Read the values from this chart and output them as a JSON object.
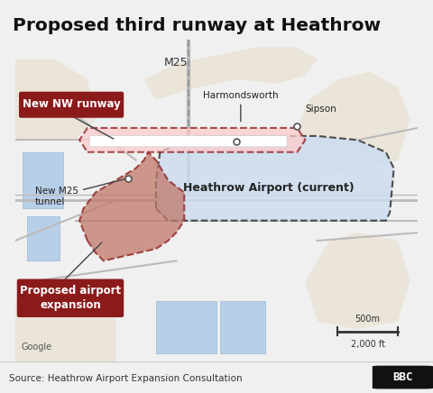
{
  "title": "Proposed third runway at Heathrow",
  "source_text": "Source: Heathrow Airport Expansion Consultation",
  "bbc_text": "BBC",
  "google_text": "Google",
  "scale_500m": "500m",
  "scale_2000ft": "2,000 ft",
  "bg_map_color": "#d4e4d0",
  "water_color": "#b8cfe8",
  "urban_color": "#e8e0d0",
  "road_color": "#cccccc",
  "current_airport_fill": "#ccdcef",
  "current_airport_edge": "#333333",
  "expansion_fill": "#c0786a",
  "expansion_edge": "#8b1a1a",
  "runway_fill": "#ffcccc",
  "runway_edge": "#8b1a1a",
  "runway_bar_color": "#ffffff",
  "label_box_color": "#8b1a1a",
  "label_text_color": "#ffffff",
  "annotation_text_color": "#111111",
  "title_color": "#111111",
  "footer_bg": "#f0f0f0",
  "footer_text_color": "#333333",
  "bbc_bg": "#111111",
  "bbc_text_color": "#ffffff",
  "fig_width": 4.8,
  "fig_height": 4.36,
  "dpi": 100,
  "labels": {
    "new_nw_runway": "New NW runway",
    "proposed_expansion": "Proposed airport\nexpansion",
    "new_m25_tunnel": "New M25\ntunnel",
    "heathrow_current": "Heathrow Airport (current)",
    "m25": "M25",
    "harmondsworth": "Harmondsworth",
    "sipson": "Sipson"
  }
}
